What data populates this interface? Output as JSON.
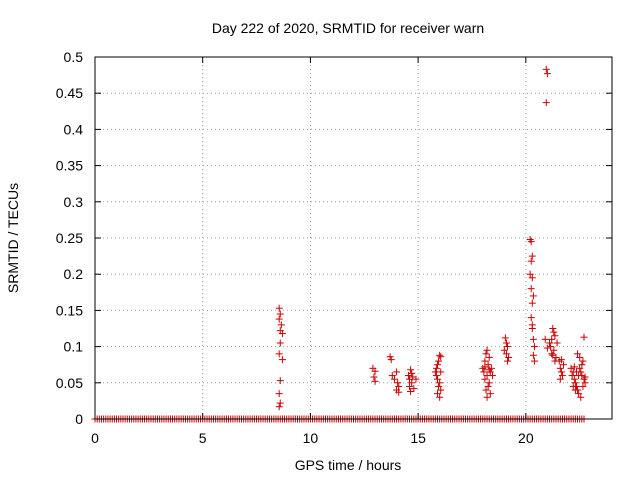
{
  "chart_data": {
    "type": "scatter",
    "title": "Day 222 of 2020, SRMTID for receiver warn",
    "xlabel": "GPS time / hours",
    "ylabel": "SRMTID / TECUs",
    "xlim": [
      0,
      24
    ],
    "ylim": [
      0,
      0.5
    ],
    "xticks": [
      0,
      5,
      10,
      15,
      20
    ],
    "yticks": [
      0,
      0.05,
      0.1,
      0.15,
      0.2,
      0.25,
      0.3,
      0.35,
      0.4,
      0.45,
      0.5
    ],
    "xtick_labels": [
      "0",
      "5",
      "10",
      "15",
      "20"
    ],
    "ytick_labels": [
      "0",
      "0.05",
      "0.1",
      "0.15",
      "0.2",
      "0.25",
      "0.3",
      "0.35",
      "0.4",
      "0.45",
      "0.5"
    ],
    "grid": true,
    "marker": "plus",
    "color": "#cc0000",
    "baseline_zero_x_range": [
      0,
      22.8
    ],
    "series": [
      {
        "name": "SRMTID",
        "points": [
          [
            8.55,
            0.153
          ],
          [
            8.6,
            0.145
          ],
          [
            8.55,
            0.138
          ],
          [
            8.65,
            0.13
          ],
          [
            8.6,
            0.122
          ],
          [
            8.7,
            0.118
          ],
          [
            8.6,
            0.105
          ],
          [
            8.55,
            0.09
          ],
          [
            8.7,
            0.082
          ],
          [
            8.6,
            0.053
          ],
          [
            8.55,
            0.035
          ],
          [
            8.6,
            0.022
          ],
          [
            8.55,
            0.017
          ],
          [
            12.9,
            0.07
          ],
          [
            13.0,
            0.066
          ],
          [
            12.95,
            0.058
          ],
          [
            13.0,
            0.052
          ],
          [
            13.7,
            0.086
          ],
          [
            13.75,
            0.082
          ],
          [
            13.8,
            0.06
          ],
          [
            13.9,
            0.055
          ],
          [
            14.0,
            0.065
          ],
          [
            14.05,
            0.05
          ],
          [
            14.1,
            0.045
          ],
          [
            14.0,
            0.04
          ],
          [
            14.1,
            0.037
          ],
          [
            14.55,
            0.06
          ],
          [
            14.65,
            0.068
          ],
          [
            14.7,
            0.063
          ],
          [
            14.6,
            0.055
          ],
          [
            14.75,
            0.058
          ],
          [
            14.7,
            0.05
          ],
          [
            14.6,
            0.045
          ],
          [
            14.8,
            0.042
          ],
          [
            14.65,
            0.038
          ],
          [
            14.9,
            0.055
          ],
          [
            15.8,
            0.065
          ],
          [
            15.85,
            0.07
          ],
          [
            15.9,
            0.075
          ],
          [
            15.95,
            0.08
          ],
          [
            16.0,
            0.088
          ],
          [
            16.05,
            0.086
          ],
          [
            15.85,
            0.06
          ],
          [
            15.9,
            0.055
          ],
          [
            16.0,
            0.05
          ],
          [
            15.95,
            0.045
          ],
          [
            16.05,
            0.04
          ],
          [
            15.9,
            0.035
          ],
          [
            16.0,
            0.03
          ],
          [
            16.05,
            0.065
          ],
          [
            18.0,
            0.07
          ],
          [
            18.05,
            0.065
          ],
          [
            18.1,
            0.08
          ],
          [
            18.15,
            0.09
          ],
          [
            18.2,
            0.095
          ],
          [
            18.25,
            0.075
          ],
          [
            18.3,
            0.085
          ],
          [
            18.2,
            0.06
          ],
          [
            18.1,
            0.055
          ],
          [
            18.3,
            0.05
          ],
          [
            18.25,
            0.045
          ],
          [
            18.15,
            0.04
          ],
          [
            18.35,
            0.035
          ],
          [
            18.2,
            0.03
          ],
          [
            18.4,
            0.07
          ],
          [
            18.35,
            0.065
          ],
          [
            18.45,
            0.06
          ],
          [
            18.1,
            0.072
          ],
          [
            18.3,
            0.068
          ],
          [
            19.05,
            0.112
          ],
          [
            19.1,
            0.105
          ],
          [
            19.15,
            0.1
          ],
          [
            19.0,
            0.095
          ],
          [
            19.1,
            0.09
          ],
          [
            19.2,
            0.085
          ],
          [
            19.15,
            0.08
          ],
          [
            20.2,
            0.248
          ],
          [
            20.25,
            0.245
          ],
          [
            20.3,
            0.225
          ],
          [
            20.25,
            0.218
          ],
          [
            20.2,
            0.2
          ],
          [
            20.3,
            0.195
          ],
          [
            20.25,
            0.18
          ],
          [
            20.35,
            0.17
          ],
          [
            20.3,
            0.16
          ],
          [
            20.25,
            0.14
          ],
          [
            20.3,
            0.125
          ],
          [
            20.35,
            0.11
          ],
          [
            20.4,
            0.1
          ],
          [
            20.35,
            0.088
          ],
          [
            20.4,
            0.08
          ],
          [
            20.3,
            0.13
          ],
          [
            20.95,
            0.483
          ],
          [
            21.0,
            0.477
          ],
          [
            20.95,
            0.437
          ],
          [
            20.9,
            0.11
          ],
          [
            21.0,
            0.098
          ],
          [
            21.1,
            0.105
          ],
          [
            21.2,
            0.11
          ],
          [
            21.25,
            0.125
          ],
          [
            21.3,
            0.12
          ],
          [
            21.35,
            0.115
          ],
          [
            21.15,
            0.1
          ],
          [
            21.3,
            0.095
          ],
          [
            21.2,
            0.09
          ],
          [
            21.4,
            0.085
          ],
          [
            21.35,
            0.08
          ],
          [
            21.25,
            0.088
          ],
          [
            21.45,
            0.105
          ],
          [
            21.55,
            0.08
          ],
          [
            21.6,
            0.07
          ],
          [
            21.65,
            0.065
          ],
          [
            21.7,
            0.06
          ],
          [
            21.6,
            0.055
          ],
          [
            21.75,
            0.075
          ],
          [
            21.65,
            0.082
          ],
          [
            22.1,
            0.07
          ],
          [
            22.15,
            0.06
          ],
          [
            22.2,
            0.065
          ],
          [
            22.25,
            0.055
          ],
          [
            22.3,
            0.05
          ],
          [
            22.35,
            0.045
          ],
          [
            22.4,
            0.04
          ],
          [
            22.45,
            0.06
          ],
          [
            22.5,
            0.07
          ],
          [
            22.55,
            0.065
          ],
          [
            22.6,
            0.075
          ],
          [
            22.65,
            0.08
          ],
          [
            22.7,
            0.055
          ],
          [
            22.75,
            0.05
          ],
          [
            22.2,
            0.045
          ],
          [
            22.3,
            0.04
          ],
          [
            22.45,
            0.035
          ],
          [
            22.55,
            0.03
          ],
          [
            22.5,
            0.085
          ],
          [
            22.4,
            0.09
          ],
          [
            22.6,
            0.06
          ],
          [
            22.7,
            0.113
          ],
          [
            22.35,
            0.065
          ],
          [
            22.25,
            0.072
          ],
          [
            22.65,
            0.045
          ],
          [
            22.75,
            0.058
          ]
        ]
      }
    ]
  }
}
